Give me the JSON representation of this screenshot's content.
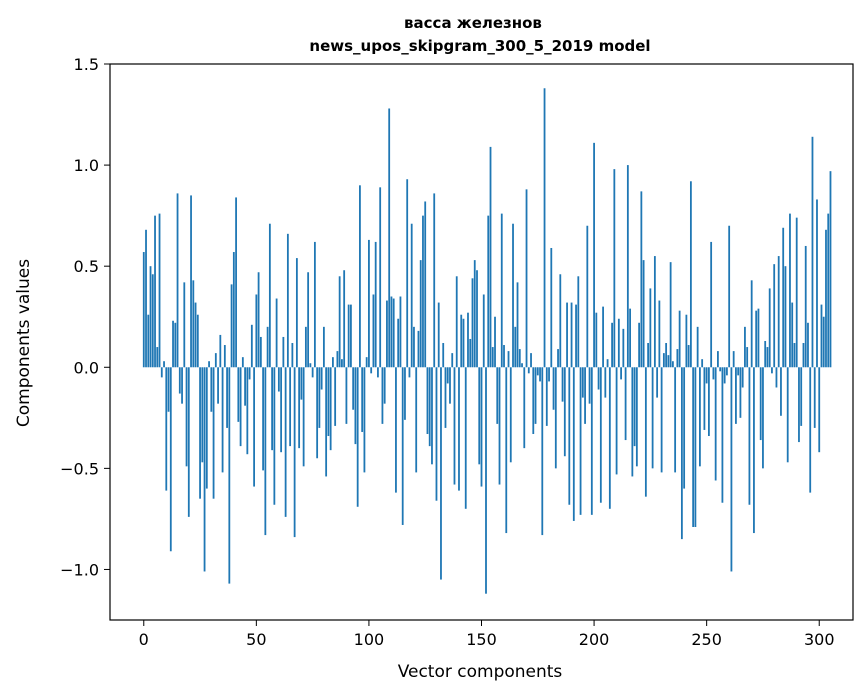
{
  "chart_data": {
    "type": "bar",
    "title_line1": "васса железнов",
    "title_line2": "news_upos_skipgram_300_5_2019 model",
    "xlabel": "Vector components",
    "ylabel": "Components values",
    "xlim": [
      -15,
      315
    ],
    "ylim": [
      -1.25,
      1.5
    ],
    "xticks": [
      0,
      50,
      100,
      150,
      200,
      250,
      300
    ],
    "xtick_labels": [
      "0",
      "50",
      "100",
      "150",
      "200",
      "250",
      "300"
    ],
    "yticks": [
      -1.0,
      -0.5,
      0.0,
      0.5,
      1.0,
      1.5
    ],
    "ytick_labels": [
      "−1.0",
      "−0.5",
      "0.0",
      "0.5",
      "1.0",
      "1.5"
    ],
    "bar_color": "#1f77b4",
    "values": [
      0.57,
      0.68,
      0.26,
      0.5,
      0.46,
      0.75,
      0.1,
      0.76,
      -0.05,
      0.03,
      -0.61,
      -0.22,
      -0.91,
      0.23,
      0.22,
      0.86,
      -0.13,
      -0.18,
      0.42,
      -0.49,
      -0.74,
      0.85,
      0.43,
      0.32,
      0.26,
      -0.65,
      -0.47,
      -1.01,
      -0.6,
      0.03,
      -0.22,
      -0.65,
      0.07,
      -0.18,
      0.16,
      -0.52,
      0.11,
      -0.3,
      -1.07,
      0.41,
      0.57,
      0.84,
      -0.27,
      -0.39,
      0.05,
      -0.19,
      -0.43,
      -0.06,
      0.21,
      -0.59,
      0.36,
      0.47,
      0.15,
      -0.51,
      -0.83,
      0.2,
      0.71,
      -0.41,
      -0.68,
      0.34,
      -0.12,
      -0.42,
      0.15,
      -0.74,
      0.66,
      -0.39,
      0.12,
      -0.84,
      0.54,
      -0.4,
      -0.16,
      -0.49,
      0.2,
      0.47,
      0.02,
      -0.05,
      0.62,
      -0.45,
      -0.3,
      -0.11,
      0.2,
      -0.54,
      -0.34,
      -0.41,
      0.05,
      -0.29,
      0.08,
      0.45,
      0.04,
      0.48,
      -0.28,
      0.31,
      0.31,
      -0.21,
      -0.38,
      -0.69,
      0.9,
      -0.32,
      -0.52,
      0.05,
      0.63,
      -0.03,
      0.36,
      0.62,
      -0.05,
      0.89,
      -0.28,
      -0.18,
      0.33,
      1.28,
      0.35,
      0.34,
      -0.62,
      0.24,
      0.35,
      -0.78,
      -0.26,
      0.93,
      -0.05,
      0.71,
      0.2,
      -0.52,
      0.18,
      0.53,
      0.75,
      0.82,
      -0.33,
      -0.39,
      -0.48,
      0.86,
      -0.66,
      0.32,
      -1.05,
      0.12,
      -0.3,
      -0.08,
      -0.18,
      0.07,
      -0.58,
      0.45,
      -0.61,
      0.26,
      0.24,
      -0.7,
      0.27,
      0.14,
      0.44,
      0.53,
      0.48,
      -0.48,
      -0.59,
      0.36,
      -1.12,
      0.75,
      1.09,
      0.1,
      0.25,
      -0.28,
      -0.58,
      0.76,
      0.11,
      -0.82,
      0.08,
      -0.47,
      0.71,
      0.2,
      0.42,
      0.09,
      0.02,
      -0.4,
      0.88,
      -0.03,
      0.07,
      -0.33,
      -0.28,
      -0.04,
      -0.07,
      -0.83,
      1.38,
      -0.29,
      -0.07,
      0.59,
      -0.21,
      -0.5,
      0.09,
      0.46,
      -0.17,
      -0.44,
      0.32,
      -0.68,
      0.32,
      -0.76,
      0.31,
      0.45,
      -0.73,
      -0.15,
      -0.28,
      0.7,
      -0.18,
      -0.73,
      1.11,
      0.27,
      -0.11,
      -0.67,
      0.3,
      -0.15,
      0.04,
      -0.7,
      0.22,
      0.98,
      -0.53,
      0.24,
      -0.06,
      0.19,
      -0.36,
      1.0,
      0.29,
      -0.54,
      -0.39,
      -0.49,
      0.22,
      0.87,
      0.53,
      -0.64,
      0.12,
      0.39,
      -0.5,
      0.55,
      -0.15,
      0.33,
      -0.52,
      0.07,
      0.12,
      0.06,
      0.52,
      0.03,
      -0.52,
      0.09,
      0.28,
      -0.85,
      -0.6,
      0.26,
      0.11,
      0.92,
      -0.79,
      -0.79,
      0.2,
      -0.49,
      0.04,
      -0.31,
      -0.08,
      -0.34,
      0.62,
      -0.06,
      -0.56,
      0.08,
      -0.02,
      -0.67,
      -0.08,
      -0.04,
      0.7,
      -1.01,
      0.08,
      -0.28,
      -0.04,
      -0.25,
      -0.1,
      0.2,
      0.1,
      -0.68,
      0.43,
      -0.82,
      0.28,
      0.29,
      -0.36,
      -0.5,
      0.13,
      0.1,
      0.39,
      -0.03,
      0.51,
      -0.1,
      0.55,
      -0.24,
      0.69,
      0.5,
      -0.47,
      0.76,
      0.32,
      0.12,
      0.74,
      -0.37,
      -0.29,
      0.12,
      0.6,
      0.22,
      -0.62,
      1.14,
      -0.3,
      0.83,
      -0.42,
      0.31,
      0.25,
      0.68,
      0.76,
      0.97
    ]
  }
}
